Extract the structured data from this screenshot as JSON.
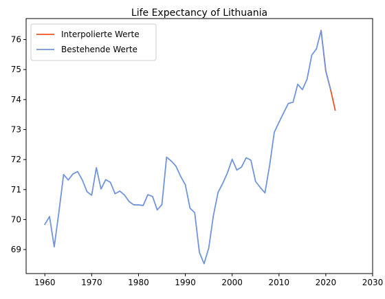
{
  "chart_data": {
    "type": "line",
    "title": "Life Expectancy of Lithuania",
    "xlabel": "",
    "ylabel": "",
    "xlim": [
      1956,
      2030
    ],
    "ylim": [
      68.2,
      76.7
    ],
    "xticks": [
      1960,
      1970,
      1980,
      1990,
      2000,
      2010,
      2020,
      2030
    ],
    "yticks": [
      69,
      70,
      71,
      72,
      73,
      74,
      75,
      76
    ],
    "grid": false,
    "legend": "top-left",
    "series": [
      {
        "name": "Interpolierte Werte",
        "color": "#e8541f",
        "x": [
          2019,
          2020,
          2021,
          2022
        ],
        "y": [
          76.3,
          74.95,
          74.35,
          73.65
        ]
      },
      {
        "name": "Bestehende Werte",
        "color": "#6f94dc",
        "x": [
          1960,
          1961,
          1962,
          1963,
          1964,
          1965,
          1966,
          1967,
          1968,
          1969,
          1970,
          1971,
          1972,
          1973,
          1974,
          1975,
          1976,
          1977,
          1978,
          1979,
          1980,
          1981,
          1982,
          1983,
          1984,
          1985,
          1986,
          1987,
          1988,
          1989,
          1990,
          1991,
          1992,
          1993,
          1994,
          1995,
          1996,
          1997,
          1998,
          1999,
          2000,
          2001,
          2002,
          2003,
          2004,
          2005,
          2006,
          2007,
          2008,
          2009,
          2010,
          2011,
          2012,
          2013,
          2014,
          2015,
          2016,
          2017,
          2018,
          2019,
          2020,
          2021
        ],
        "y": [
          69.84,
          70.1,
          69.09,
          70.25,
          71.5,
          71.32,
          71.52,
          71.6,
          71.32,
          70.93,
          70.81,
          71.73,
          71.02,
          71.33,
          71.24,
          70.86,
          70.95,
          70.82,
          70.6,
          70.49,
          70.49,
          70.47,
          70.83,
          70.77,
          70.32,
          70.5,
          72.08,
          71.95,
          71.78,
          71.44,
          71.16,
          70.38,
          70.23,
          68.91,
          68.53,
          69.05,
          70.14,
          70.91,
          71.21,
          71.56,
          72.01,
          71.65,
          71.75,
          72.06,
          71.98,
          71.27,
          71.07,
          70.89,
          71.8,
          72.91,
          73.24,
          73.56,
          73.87,
          73.91,
          74.51,
          74.33,
          74.68,
          75.48,
          75.69,
          76.3,
          74.95,
          74.35
        ]
      }
    ]
  }
}
